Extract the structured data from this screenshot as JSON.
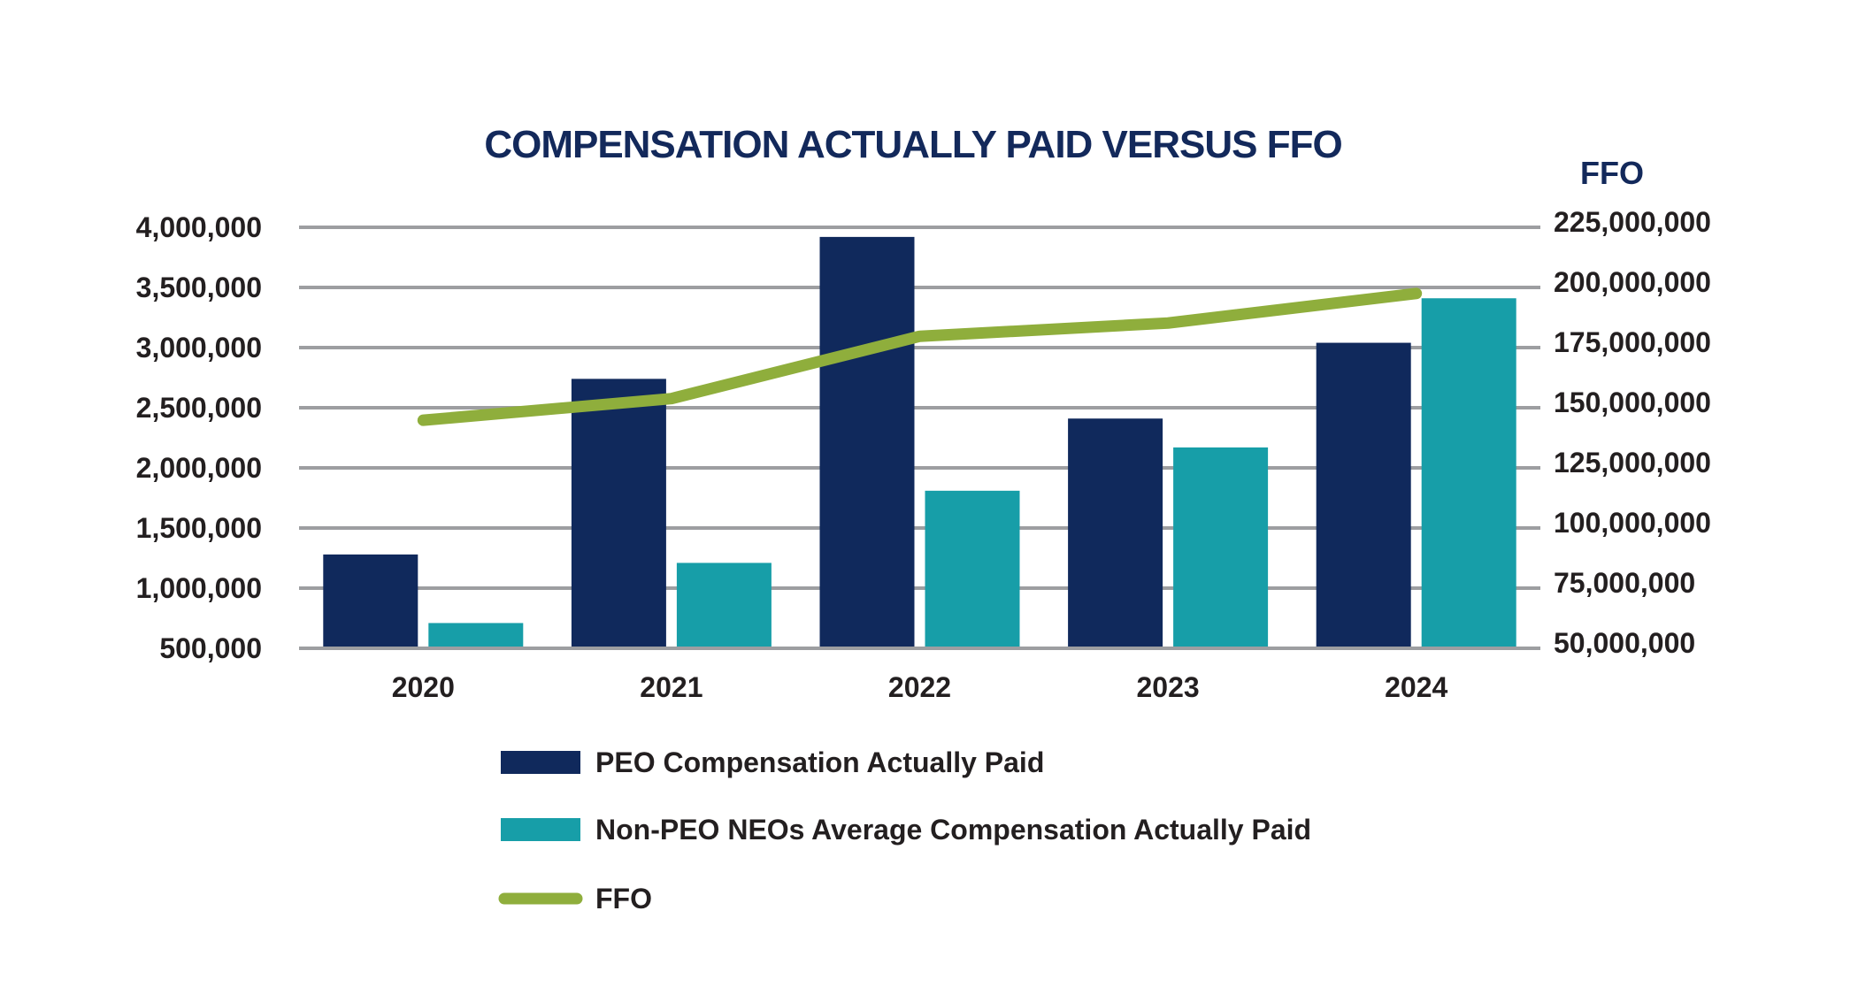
{
  "chart_data": {
    "type": "bar",
    "title": "COMPENSATION ACTUALLY PAID VERSUS FFO",
    "categories": [
      "2020",
      "2021",
      "2022",
      "2023",
      "2024"
    ],
    "y_left": {
      "label": "",
      "range": [
        500000,
        4000000
      ],
      "ticks": [
        "4,000,000",
        "3,500,000",
        "3,000,000",
        "2,500,000",
        "2,000,000",
        "1,500,000",
        "1,000,000",
        "500,000"
      ]
    },
    "y_right": {
      "label": "FFO",
      "range": [
        50000000,
        225000000
      ],
      "ticks": [
        "225,000,000",
        "200,000,000",
        "175,000,000",
        "150,000,000",
        "125,000,000",
        "100,000,000",
        "75,000,000",
        "50,000,000"
      ]
    },
    "grid": true,
    "legend_position": "bottom",
    "series": [
      {
        "name": "PEO Compensation Actually Paid",
        "kind": "bar",
        "axis": "left",
        "color": "#10295c",
        "values": [
          1280000,
          2740000,
          3920000,
          2410000,
          3040000
        ]
      },
      {
        "name": "Non-PEO NEOs Average Compensation Actually Paid",
        "kind": "bar",
        "axis": "left",
        "color": "#179ea8",
        "values": [
          710000,
          1210000,
          1810000,
          2170000,
          3410000
        ]
      },
      {
        "name": "FFO",
        "kind": "line",
        "axis": "right",
        "color": "#8fae3c",
        "values": [
          144800000,
          153800000,
          179700000,
          185200000,
          197500000
        ]
      }
    ]
  }
}
